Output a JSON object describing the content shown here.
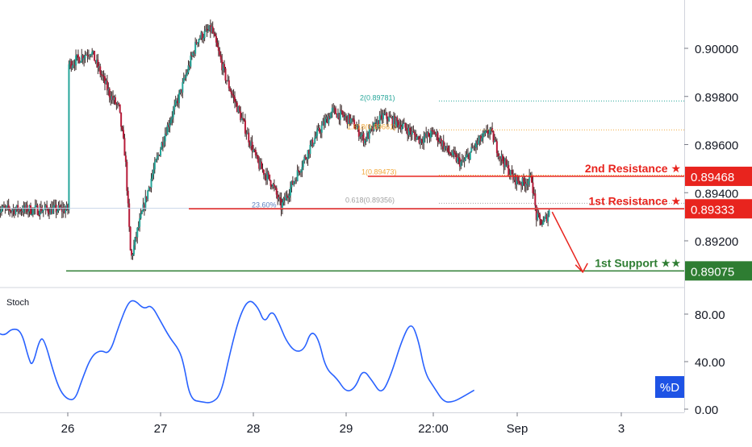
{
  "chart_data": [
    {
      "type": "candlestick",
      "panel": "price",
      "x_ticks": [
        "26",
        "27",
        "28",
        "29",
        "22:00",
        "Sep",
        "3"
      ],
      "y_ticks": [
        0.892,
        0.894,
        0.896,
        0.898,
        0.9
      ],
      "y_tick_labels": [
        "0.89200",
        "0.89400",
        "0.89600",
        "0.89800",
        "0.90000"
      ],
      "ylim": [
        0.8898,
        0.9016
      ],
      "colors": {
        "up": "#26a69a",
        "down": "#b71c3a",
        "wick": "#3c2a2a"
      },
      "close_path": [
        {
          "x": 0.0,
          "y": 0.8993
        },
        {
          "x": 0.25,
          "y": 0.8999
        },
        {
          "x": 0.45,
          "y": 0.8981
        },
        {
          "x": 0.55,
          "y": 0.8975
        },
        {
          "x": 0.62,
          "y": 0.8955
        },
        {
          "x": 0.68,
          "y": 0.8912
        },
        {
          "x": 0.75,
          "y": 0.8924
        },
        {
          "x": 0.9,
          "y": 0.8946
        },
        {
          "x": 1.05,
          "y": 0.8965
        },
        {
          "x": 1.2,
          "y": 0.898
        },
        {
          "x": 1.4,
          "y": 0.9004
        },
        {
          "x": 1.55,
          "y": 0.9008
        },
        {
          "x": 1.7,
          "y": 0.8988
        },
        {
          "x": 1.9,
          "y": 0.8968
        },
        {
          "x": 2.05,
          "y": 0.8952
        },
        {
          "x": 2.2,
          "y": 0.8944
        },
        {
          "x": 2.3,
          "y": 0.8934
        },
        {
          "x": 2.45,
          "y": 0.8946
        },
        {
          "x": 2.65,
          "y": 0.8962
        },
        {
          "x": 2.85,
          "y": 0.8974
        },
        {
          "x": 3.05,
          "y": 0.897
        },
        {
          "x": 3.2,
          "y": 0.8962
        },
        {
          "x": 3.4,
          "y": 0.8972
        },
        {
          "x": 3.6,
          "y": 0.8968
        },
        {
          "x": 3.8,
          "y": 0.8962
        },
        {
          "x": 3.95,
          "y": 0.8965
        },
        {
          "x": 4.1,
          "y": 0.8957
        },
        {
          "x": 4.25,
          "y": 0.8952
        },
        {
          "x": 4.4,
          "y": 0.896
        },
        {
          "x": 4.55,
          "y": 0.8966
        },
        {
          "x": 4.65,
          "y": 0.8956
        },
        {
          "x": 4.8,
          "y": 0.8946
        },
        {
          "x": 4.9,
          "y": 0.8944
        },
        {
          "x": 5.0,
          "y": 0.8946
        },
        {
          "x": 5.05,
          "y": 0.893
        },
        {
          "x": 5.12,
          "y": 0.8927
        },
        {
          "x": 5.2,
          "y": 0.8933
        }
      ],
      "levels": [
        {
          "label": "2nd Resistance ★",
          "value": 0.89468,
          "price_label": "0.89468",
          "color": "#e8241e",
          "x_from": 4.0
        },
        {
          "label": "1st Resistance ★",
          "value": 0.89333,
          "price_label": "0.89333",
          "color": "#e8241e",
          "x_from": 1.3
        },
        {
          "label": "1st Support ★★",
          "value": 0.89075,
          "price_label": "0.89075",
          "color": "#2e7d32",
          "x_from": -0.05
        }
      ],
      "fib_lines": [
        {
          "label": "2(0.89781)",
          "value": 0.89781,
          "color": "#26a69a",
          "x_from": 4.0
        },
        {
          "label": "1.618(0.89661)",
          "value": 0.89661,
          "color": "#f2a93b",
          "x_from": 4.0
        },
        {
          "label": "1(0.89473)",
          "value": 0.89473,
          "color": "#f2a93b",
          "x_from": 4.0
        },
        {
          "label": "0.618(0.89356)",
          "value": 0.89356,
          "color": "#a0a0a0",
          "x_from": 4.0
        },
        {
          "label": "23.60%",
          "value": 0.89335,
          "color": "#5b7fbf",
          "x_from": 2.0
        }
      ],
      "hline_current": {
        "value": 0.89335,
        "color": "#c9d6e8"
      },
      "arrow": {
        "from": {
          "x": 5.22,
          "y": 0.8932
        },
        "to": {
          "x": 5.55,
          "y": 0.8907
        },
        "color": "#e8241e"
      }
    },
    {
      "type": "line",
      "panel": "oscillator",
      "title": "Stoch",
      "series": [
        {
          "name": "%D",
          "color": "#2962ff"
        }
      ],
      "legend_badge": "%D",
      "y_ticks": [
        0,
        40,
        80
      ],
      "y_tick_labels": [
        "0.00",
        "40.00",
        "80.00"
      ],
      "ylim": [
        -2,
        100
      ],
      "values": [
        {
          "x": -0.75,
          "y": 64
        },
        {
          "x": -0.68,
          "y": 62
        },
        {
          "x": -0.6,
          "y": 68
        },
        {
          "x": -0.5,
          "y": 66
        },
        {
          "x": -0.42,
          "y": 42
        },
        {
          "x": -0.38,
          "y": 36
        },
        {
          "x": -0.3,
          "y": 60
        },
        {
          "x": -0.25,
          "y": 58
        },
        {
          "x": -0.15,
          "y": 30
        },
        {
          "x": -0.08,
          "y": 15
        },
        {
          "x": 0.0,
          "y": 8
        },
        {
          "x": 0.08,
          "y": 8
        },
        {
          "x": 0.15,
          "y": 24
        },
        {
          "x": 0.25,
          "y": 44
        },
        {
          "x": 0.35,
          "y": 50
        },
        {
          "x": 0.45,
          "y": 46
        },
        {
          "x": 0.55,
          "y": 70
        },
        {
          "x": 0.65,
          "y": 90
        },
        {
          "x": 0.72,
          "y": 92
        },
        {
          "x": 0.82,
          "y": 84
        },
        {
          "x": 0.9,
          "y": 88
        },
        {
          "x": 1.0,
          "y": 74
        },
        {
          "x": 1.1,
          "y": 60
        },
        {
          "x": 1.2,
          "y": 50
        },
        {
          "x": 1.25,
          "y": 38
        },
        {
          "x": 1.32,
          "y": 8
        },
        {
          "x": 1.45,
          "y": 6
        },
        {
          "x": 1.55,
          "y": 5
        },
        {
          "x": 1.65,
          "y": 12
        },
        {
          "x": 1.75,
          "y": 48
        },
        {
          "x": 1.85,
          "y": 78
        },
        {
          "x": 1.95,
          "y": 93
        },
        {
          "x": 2.05,
          "y": 86
        },
        {
          "x": 2.12,
          "y": 72
        },
        {
          "x": 2.2,
          "y": 84
        },
        {
          "x": 2.28,
          "y": 72
        },
        {
          "x": 2.35,
          "y": 58
        },
        {
          "x": 2.45,
          "y": 48
        },
        {
          "x": 2.55,
          "y": 50
        },
        {
          "x": 2.62,
          "y": 66
        },
        {
          "x": 2.7,
          "y": 60
        },
        {
          "x": 2.78,
          "y": 34
        },
        {
          "x": 2.9,
          "y": 26
        },
        {
          "x": 3.0,
          "y": 14
        },
        {
          "x": 3.1,
          "y": 18
        },
        {
          "x": 3.18,
          "y": 34
        },
        {
          "x": 3.28,
          "y": 24
        },
        {
          "x": 3.38,
          "y": 12
        },
        {
          "x": 3.48,
          "y": 28
        },
        {
          "x": 3.6,
          "y": 58
        },
        {
          "x": 3.7,
          "y": 74
        },
        {
          "x": 3.78,
          "y": 58
        },
        {
          "x": 3.85,
          "y": 30
        },
        {
          "x": 3.95,
          "y": 18
        },
        {
          "x": 4.05,
          "y": 6
        },
        {
          "x": 4.15,
          "y": 6
        },
        {
          "x": 4.25,
          "y": 10
        },
        {
          "x": 4.38,
          "y": 16
        }
      ]
    }
  ]
}
